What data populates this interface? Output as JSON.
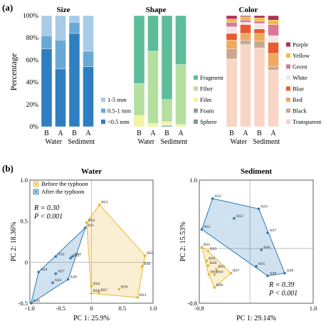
{
  "panel_a": {
    "label": "(a)",
    "ylabel": "Percentage",
    "yticks": [
      "0%",
      "20%",
      "40%",
      "60%",
      "80%",
      "100%"
    ]
  },
  "panel_b": {
    "label": "(b)"
  },
  "chart_data": [
    {
      "type": "bar",
      "stacked": true,
      "title": "Size",
      "categories": [
        "B",
        "A",
        "B",
        "A"
      ],
      "groups": [
        "Water",
        "Sediment"
      ],
      "ylim": [
        0,
        100
      ],
      "legend_position": "right",
      "colors": [
        "#2e7fc1",
        "#6aa8d6",
        "#a8cbe8"
      ],
      "series": [
        {
          "name": "<0.5 mm",
          "values": [
            70,
            52,
            84,
            54
          ]
        },
        {
          "name": "0.5-1 mm",
          "values": [
            12,
            26,
            10,
            14
          ]
        },
        {
          "name": "1-5 mm",
          "values": [
            18,
            22,
            6,
            32
          ]
        }
      ]
    },
    {
      "type": "bar",
      "stacked": true,
      "title": "Shape",
      "categories": [
        "B",
        "A",
        "B",
        "A"
      ],
      "groups": [
        "Water",
        "Sediment"
      ],
      "ylim": [
        0,
        100
      ],
      "legend_position": "right",
      "colors": [
        "#7a9a9a",
        "#8aa0a0",
        "#f0f3a0",
        "#b5dfa0",
        "#5dbd9a"
      ],
      "series": [
        {
          "name": "Sphere",
          "values": [
            0,
            0,
            1,
            0
          ]
        },
        {
          "name": "Foam",
          "values": [
            0,
            0,
            0.5,
            0
          ]
        },
        {
          "name": "Film",
          "values": [
            10,
            3,
            3,
            2
          ]
        },
        {
          "name": "Fiber",
          "values": [
            29,
            65,
            20,
            54
          ]
        },
        {
          "name": "Fragment",
          "values": [
            61,
            32,
            75.5,
            44
          ]
        }
      ]
    },
    {
      "type": "bar",
      "stacked": true,
      "title": "Color",
      "categories": [
        "B",
        "A",
        "B",
        "A"
      ],
      "groups": [
        "Water",
        "Sediment"
      ],
      "ylim": [
        0,
        100
      ],
      "legend_position": "right",
      "colors": [
        "#f8d5c5",
        "#c9a890",
        "#f2a860",
        "#e85a30",
        "#f4e6e6",
        "#d97898",
        "#f0c040",
        "#b03050"
      ],
      "series": [
        {
          "name": "Transparent",
          "values": [
            61,
            74,
            71,
            51
          ]
        },
        {
          "name": "Black",
          "values": [
            9,
            4,
            6,
            3
          ]
        },
        {
          "name": "Red",
          "values": [
            8,
            6,
            7,
            12
          ]
        },
        {
          "name": "Blue",
          "values": [
            6,
            8,
            4,
            10
          ]
        },
        {
          "name": "White",
          "values": [
            6,
            2,
            5,
            6
          ]
        },
        {
          "name": "Green",
          "values": [
            4,
            2,
            2,
            10
          ]
        },
        {
          "name": "Yellow",
          "values": [
            3,
            3,
            3,
            4
          ]
        },
        {
          "name": "Purple",
          "values": [
            3,
            1,
            2,
            4
          ]
        }
      ]
    },
    {
      "type": "scatter",
      "title": "Water",
      "xlabel": "PC 1: 25.9%",
      "ylabel": "PC 2: 18.36%",
      "xlim": [
        -1.0,
        1.0
      ],
      "ylim": [
        -0.5,
        1.0
      ],
      "xticks": [
        -1.0,
        -0.5,
        0,
        0.5,
        1.0
      ],
      "xtick_labels": [
        "-1.0",
        "-0.5",
        "0",
        "0.5",
        "1.0"
      ],
      "yticks": [
        -0.5,
        0,
        0.5,
        1.0
      ],
      "ytick_labels": [
        "-0.5",
        "0",
        "0.5",
        "1.0"
      ],
      "legend_position": "top-left",
      "stats": [
        "R = 0.30",
        "P < 0.001"
      ],
      "series": [
        {
          "name": "Before the typhoon",
          "color": "#e6b830",
          "points": [
            {
              "label": "BS1",
              "x": 0.13,
              "y": 0.7
            },
            {
              "label": "BS2",
              "x": -0.08,
              "y": 0.48
            },
            {
              "label": "BS3",
              "x": 0.75,
              "y": -0.43
            },
            {
              "label": "BS4",
              "x": 0.0,
              "y": -0.29
            },
            {
              "label": "BS5",
              "x": 0.87,
              "y": 0.08
            },
            {
              "label": "BS6",
              "x": 0.82,
              "y": -0.05
            },
            {
              "label": "BS7",
              "x": 0.12,
              "y": -0.37
            },
            {
              "label": "BS8",
              "x": 0.0,
              "y": -0.38
            },
            {
              "label": "BS9",
              "x": 0.45,
              "y": -0.33
            }
          ]
        },
        {
          "name": "After the typhoon",
          "color": "#2a7ab8",
          "points": [
            {
              "label": "AS1",
              "x": -0.1,
              "y": 0.42
            },
            {
              "label": "AS2",
              "x": -0.58,
              "y": 0.07
            },
            {
              "label": "AS3",
              "x": -0.63,
              "y": -0.25
            },
            {
              "label": "AS4",
              "x": -0.86,
              "y": -0.12
            },
            {
              "label": "AS5",
              "x": -0.34,
              "y": 0.05
            },
            {
              "label": "AS6",
              "x": -0.31,
              "y": 0.07
            },
            {
              "label": "AS7",
              "x": -0.58,
              "y": -0.14
            },
            {
              "label": "AS8",
              "x": -0.38,
              "y": -0.21
            },
            {
              "label": "AS9",
              "x": -0.98,
              "y": -0.5
            }
          ]
        }
      ]
    },
    {
      "type": "scatter",
      "title": "Sediment",
      "xlabel": "PC 1: 29.14%",
      "ylabel": "PC 2: 15.53%",
      "xlim": [
        -0.8,
        1.0
      ],
      "ylim": [
        -0.8,
        1.0
      ],
      "xticks": [
        -0.8,
        1.0
      ],
      "xtick_labels": [
        "-0.8",
        "1.0"
      ],
      "yticks": [
        -0.8,
        1.0
      ],
      "ytick_labels": [
        "-0.8",
        "1.0"
      ],
      "stats": [
        "R = 0.39",
        "P < 0.001"
      ],
      "series": [
        {
          "name": "Before the typhoon",
          "color": "#e6b830",
          "points": [
            {
              "label": "BS1",
              "x": -0.76,
              "y": 0.02
            },
            {
              "label": "BS2",
              "x": -0.68,
              "y": -0.18
            },
            {
              "label": "BS3",
              "x": -0.66,
              "y": -0.04
            },
            {
              "label": "BS4",
              "x": -0.56,
              "y": -0.38
            },
            {
              "label": "BS5",
              "x": -0.53,
              "y": -0.3
            },
            {
              "label": "BS6",
              "x": -0.65,
              "y": -0.38
            },
            {
              "label": "BS7",
              "x": -0.3,
              "y": -0.36
            },
            {
              "label": "BS8",
              "x": -0.56,
              "y": -0.57
            },
            {
              "label": "BS9",
              "x": -0.66,
              "y": -0.25
            }
          ]
        },
        {
          "name": "After the typhoon",
          "color": "#2a7ab8",
          "points": [
            {
              "label": "AS1",
              "x": -0.76,
              "y": 0.28
            },
            {
              "label": "AS2",
              "x": -0.59,
              "y": 0.73
            },
            {
              "label": "AS3",
              "x": 0.14,
              "y": 0.58
            },
            {
              "label": "AS4",
              "x": -0.25,
              "y": 0.44
            },
            {
              "label": "AS5",
              "x": 0.1,
              "y": -0.26
            },
            {
              "label": "AS6",
              "x": 0.18,
              "y": -0.02
            },
            {
              "label": "AS7",
              "x": 0.28,
              "y": 0.23
            },
            {
              "label": "AS8",
              "x": 0.55,
              "y": -0.36
            },
            {
              "label": "AS9",
              "x": 0.28,
              "y": -0.4
            }
          ]
        }
      ]
    }
  ]
}
